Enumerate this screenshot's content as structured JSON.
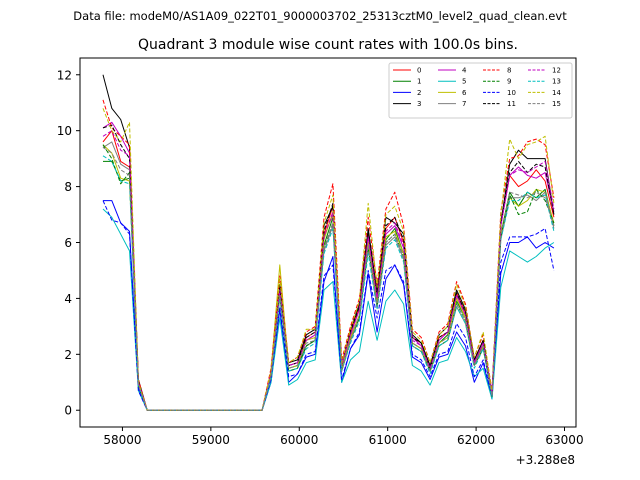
{
  "header": "Data file: modeM0/AS1A09_022T01_9000003702_25313cztM0_level2_quad_clean.evt",
  "chart_data": {
    "type": "line",
    "title": "Quadrant 3 module wise count rates with 100.0s bins.",
    "xlabel": "",
    "ylabel": "",
    "x_offset_label": "+3.288e8",
    "xlim": [
      57520,
      63130
    ],
    "ylim": [
      -0.6,
      12.6
    ],
    "xticks": [
      58000,
      59000,
      60000,
      61000,
      62000,
      63000
    ],
    "xtick_labels": [
      "58000",
      "59000",
      "60000",
      "61000",
      "62000",
      "63000"
    ],
    "yticks": [
      0,
      2,
      4,
      6,
      8,
      10,
      12
    ],
    "ytick_labels": [
      "0",
      "2",
      "4",
      "6",
      "8",
      "10",
      "12"
    ],
    "grid": false,
    "legend_placement": "top-right",
    "legend_columns": 4,
    "x": [
      57780,
      57880,
      57980,
      58080,
      58180,
      58280,
      58380,
      58480,
      58580,
      58680,
      58780,
      58880,
      58980,
      59080,
      59180,
      59280,
      59380,
      59480,
      59580,
      59680,
      59780,
      59880,
      59980,
      60080,
      60180,
      60280,
      60380,
      60480,
      60580,
      60680,
      60780,
      60880,
      60980,
      61080,
      61180,
      61280,
      61380,
      61480,
      61580,
      61680,
      61780,
      61880,
      61980,
      62080,
      62180,
      62280,
      62380,
      62480,
      62580,
      62680,
      62780,
      62880
    ],
    "series": [
      {
        "name": "0",
        "color": "#ff0000",
        "dash": false,
        "values": [
          9.6,
          10.0,
          8.9,
          8.7,
          1.0,
          0,
          0,
          0,
          0,
          0,
          0,
          0,
          0,
          0,
          0,
          0,
          0,
          0,
          0,
          1.3,
          4.4,
          1.6,
          1.7,
          2.6,
          2.8,
          6.3,
          7.3,
          1.6,
          2.8,
          3.7,
          6.3,
          4.2,
          6.5,
          6.9,
          6.0,
          2.6,
          2.4,
          1.5,
          2.6,
          2.8,
          4.2,
          3.5,
          1.8,
          2.5,
          0.6,
          6.6,
          8.4,
          8.0,
          8.2,
          8.6,
          8.2,
          6.9
        ]
      },
      {
        "name": "1",
        "color": "#008000",
        "dash": false,
        "values": [
          8.9,
          8.9,
          8.2,
          8.3,
          0.9,
          0,
          0,
          0,
          0,
          0,
          0,
          0,
          0,
          0,
          0,
          0,
          0,
          0,
          0,
          1.2,
          4.2,
          1.5,
          1.6,
          2.3,
          2.5,
          5.9,
          6.9,
          1.5,
          2.6,
          3.4,
          6.0,
          3.9,
          6.1,
          6.5,
          5.6,
          2.4,
          2.2,
          1.4,
          2.4,
          2.7,
          3.9,
          3.3,
          1.7,
          2.3,
          0.5,
          6.3,
          7.8,
          7.3,
          7.8,
          7.6,
          7.9,
          6.6
        ]
      },
      {
        "name": "2",
        "color": "#0000ff",
        "dash": false,
        "values": [
          7.5,
          7.5,
          6.7,
          6.4,
          0.8,
          0,
          0,
          0,
          0,
          0,
          0,
          0,
          0,
          0,
          0,
          0,
          0,
          0,
          0,
          1.0,
          3.6,
          1.0,
          1.3,
          1.9,
          2.0,
          4.6,
          5.5,
          1.0,
          2.2,
          2.7,
          4.9,
          2.8,
          4.7,
          5.2,
          4.5,
          1.9,
          1.7,
          1.1,
          1.9,
          2.0,
          2.8,
          2.3,
          1.0,
          1.7,
          0.4,
          4.9,
          6.0,
          6.0,
          6.2,
          5.8,
          6.0,
          5.8
        ]
      },
      {
        "name": "3",
        "color": "#000000",
        "dash": false,
        "values": [
          12.0,
          10.8,
          10.4,
          9.4,
          1.1,
          0,
          0,
          0,
          0,
          0,
          0,
          0,
          0,
          0,
          0,
          0,
          0,
          0,
          0,
          1.3,
          4.5,
          1.7,
          1.8,
          2.7,
          2.9,
          6.6,
          7.3,
          1.6,
          2.9,
          3.8,
          6.5,
          4.2,
          6.9,
          6.7,
          6.3,
          2.7,
          2.4,
          1.6,
          2.7,
          3.0,
          4.3,
          3.6,
          1.8,
          2.5,
          0.6,
          6.7,
          8.8,
          9.3,
          9.0,
          9.0,
          9.0,
          7.0
        ]
      },
      {
        "name": "4",
        "color": "#c000c0",
        "dash": false,
        "values": [
          10.1,
          10.3,
          9.8,
          9.2,
          1.0,
          0,
          0,
          0,
          0,
          0,
          0,
          0,
          0,
          0,
          0,
          0,
          0,
          0,
          0,
          1.3,
          4.3,
          1.6,
          1.7,
          2.5,
          2.7,
          6.2,
          7.0,
          1.6,
          2.7,
          3.6,
          6.2,
          4.0,
          6.3,
          6.6,
          5.8,
          2.6,
          2.3,
          1.5,
          2.5,
          2.8,
          4.1,
          3.4,
          1.7,
          2.4,
          0.6,
          6.6,
          8.4,
          8.7,
          8.4,
          8.3,
          8.5,
          7.1
        ]
      },
      {
        "name": "5",
        "color": "#00bfbf",
        "dash": false,
        "values": [
          7.2,
          6.9,
          6.3,
          5.7,
          0.7,
          0,
          0,
          0,
          0,
          0,
          0,
          0,
          0,
          0,
          0,
          0,
          0,
          0,
          0,
          1.0,
          3.3,
          0.9,
          1.1,
          1.7,
          1.8,
          4.3,
          4.6,
          1.0,
          1.8,
          2.1,
          3.9,
          2.5,
          3.9,
          4.3,
          3.8,
          1.6,
          1.4,
          0.9,
          1.7,
          1.8,
          2.6,
          2.1,
          1.2,
          1.5,
          0.4,
          4.4,
          5.7,
          5.5,
          5.3,
          5.5,
          5.8,
          6.0
        ]
      },
      {
        "name": "6",
        "color": "#bfbf00",
        "dash": false,
        "values": [
          9.5,
          9.2,
          8.3,
          8.2,
          0.9,
          0,
          0,
          0,
          0,
          0,
          0,
          0,
          0,
          0,
          0,
          0,
          0,
          0,
          0,
          1.4,
          5.2,
          1.5,
          1.6,
          2.5,
          2.6,
          6.1,
          7.1,
          1.5,
          2.6,
          3.4,
          6.0,
          3.8,
          6.2,
          6.4,
          5.6,
          2.4,
          2.2,
          1.4,
          2.4,
          2.6,
          4.0,
          3.3,
          1.6,
          2.3,
          0.5,
          6.3,
          7.6,
          7.3,
          7.5,
          7.9,
          7.8,
          6.7
        ]
      },
      {
        "name": "7",
        "color": "#7f7f7f",
        "dash": false,
        "values": [
          9.4,
          9.6,
          8.8,
          8.6,
          0.9,
          0,
          0,
          0,
          0,
          0,
          0,
          0,
          0,
          0,
          0,
          0,
          0,
          0,
          0,
          1.2,
          4.1,
          1.4,
          1.5,
          2.3,
          2.5,
          5.7,
          6.6,
          1.4,
          2.5,
          3.3,
          5.8,
          3.7,
          5.9,
          6.2,
          5.4,
          2.3,
          2.1,
          1.4,
          2.3,
          2.5,
          3.7,
          3.1,
          1.6,
          2.2,
          0.5,
          6.1,
          7.6,
          7.6,
          7.7,
          7.5,
          7.8,
          6.5
        ]
      },
      {
        "name": "8",
        "color": "#ff0000",
        "dash": true,
        "values": [
          11.1,
          10.1,
          9.8,
          9.5,
          1.1,
          0,
          0,
          0,
          0,
          0,
          0,
          0,
          0,
          0,
          0,
          0,
          0,
          0,
          0,
          1.5,
          4.8,
          1.7,
          1.9,
          2.8,
          3.0,
          6.9,
          8.1,
          1.8,
          3.0,
          4.0,
          6.9,
          4.5,
          7.2,
          7.8,
          6.6,
          2.9,
          2.6,
          1.7,
          2.8,
          3.1,
          4.6,
          3.8,
          1.9,
          2.7,
          0.7,
          7.1,
          9.0,
          9.1,
          9.6,
          9.7,
          9.5,
          7.6
        ]
      },
      {
        "name": "9",
        "color": "#008000",
        "dash": true,
        "values": [
          9.5,
          9.0,
          8.1,
          8.5,
          0.9,
          0,
          0,
          0,
          0,
          0,
          0,
          0,
          0,
          0,
          0,
          0,
          0,
          0,
          0,
          1.2,
          4.1,
          1.4,
          1.5,
          2.3,
          2.5,
          5.8,
          6.7,
          1.4,
          2.5,
          3.3,
          5.8,
          3.7,
          6.0,
          6.3,
          5.5,
          2.3,
          2.1,
          1.4,
          2.3,
          2.5,
          3.8,
          3.2,
          1.6,
          2.2,
          0.5,
          6.2,
          7.7,
          7.0,
          7.1,
          7.9,
          7.5,
          6.7
        ]
      },
      {
        "name": "10",
        "color": "#0000ff",
        "dash": true,
        "values": [
          7.5,
          6.8,
          6.7,
          6.3,
          0.7,
          0,
          0,
          0,
          0,
          0,
          0,
          0,
          0,
          0,
          0,
          0,
          0,
          0,
          0,
          1.1,
          3.7,
          1.2,
          1.3,
          2.0,
          2.1,
          4.8,
          5.2,
          1.1,
          2.2,
          2.8,
          5.0,
          3.3,
          5.0,
          5.2,
          4.6,
          2.0,
          1.8,
          1.2,
          2.0,
          2.1,
          3.1,
          2.6,
          1.2,
          1.8,
          0.5,
          5.3,
          6.2,
          6.2,
          6.2,
          6.3,
          6.5,
          5.0
        ]
      },
      {
        "name": "11",
        "color": "#000000",
        "dash": true,
        "values": [
          10.1,
          10.2,
          9.5,
          9.0,
          1.0,
          0,
          0,
          0,
          0,
          0,
          0,
          0,
          0,
          0,
          0,
          0,
          0,
          0,
          0,
          1.3,
          4.4,
          1.6,
          1.7,
          2.6,
          2.8,
          6.4,
          7.4,
          1.6,
          2.8,
          3.7,
          6.4,
          4.1,
          6.6,
          6.9,
          6.1,
          2.6,
          2.4,
          1.5,
          2.6,
          2.8,
          4.2,
          3.5,
          1.8,
          2.5,
          0.6,
          6.7,
          8.5,
          8.9,
          8.5,
          8.8,
          8.7,
          7.0
        ]
      },
      {
        "name": "12",
        "color": "#c000c0",
        "dash": true,
        "values": [
          9.8,
          10.0,
          9.3,
          9.1,
          1.0,
          0,
          0,
          0,
          0,
          0,
          0,
          0,
          0,
          0,
          0,
          0,
          0,
          0,
          0,
          1.3,
          4.3,
          1.6,
          1.7,
          2.5,
          2.7,
          6.2,
          7.1,
          1.6,
          2.7,
          3.6,
          6.2,
          4.0,
          6.4,
          6.7,
          5.9,
          2.5,
          2.3,
          1.5,
          2.5,
          2.8,
          4.1,
          3.4,
          1.7,
          2.4,
          0.6,
          6.6,
          8.4,
          8.6,
          8.5,
          8.7,
          8.9,
          7.2
        ]
      },
      {
        "name": "13",
        "color": "#00bfbf",
        "dash": true,
        "values": [
          9.1,
          8.9,
          8.2,
          8.1,
          0.9,
          0,
          0,
          0,
          0,
          0,
          0,
          0,
          0,
          0,
          0,
          0,
          0,
          0,
          0,
          1.2,
          4.0,
          1.4,
          1.5,
          2.2,
          2.4,
          5.6,
          6.5,
          1.4,
          2.4,
          3.2,
          5.6,
          3.6,
          5.8,
          6.1,
          5.3,
          2.3,
          2.1,
          1.3,
          2.3,
          2.5,
          3.7,
          3.1,
          1.5,
          2.2,
          0.5,
          6.1,
          7.5,
          7.5,
          7.8,
          7.6,
          7.7,
          6.4
        ]
      },
      {
        "name": "14",
        "color": "#bfbf00",
        "dash": true,
        "values": [
          10.8,
          10.0,
          9.6,
          10.3,
          1.0,
          0,
          0,
          0,
          0,
          0,
          0,
          0,
          0,
          0,
          0,
          0,
          0,
          0,
          0,
          1.4,
          4.7,
          1.7,
          1.9,
          2.9,
          2.9,
          6.7,
          7.7,
          1.7,
          2.9,
          3.9,
          7.4,
          4.4,
          7.0,
          7.3,
          6.4,
          2.8,
          2.5,
          1.7,
          2.7,
          3.0,
          4.5,
          3.7,
          1.9,
          2.8,
          0.6,
          7.0,
          9.7,
          9.0,
          9.5,
          9.6,
          9.8,
          7.4
        ]
      },
      {
        "name": "15",
        "color": "#7f7f7f",
        "dash": true,
        "values": [
          9.4,
          9.2,
          8.6,
          8.4,
          0.9,
          0,
          0,
          0,
          0,
          0,
          0,
          0,
          0,
          0,
          0,
          0,
          0,
          0,
          0,
          1.2,
          4.1,
          1.5,
          1.6,
          2.4,
          2.5,
          5.8,
          6.7,
          1.4,
          2.5,
          3.4,
          5.9,
          3.7,
          6.0,
          6.3,
          5.5,
          2.4,
          2.2,
          1.4,
          2.4,
          2.6,
          3.8,
          3.2,
          1.6,
          2.3,
          0.5,
          6.2,
          7.8,
          7.7,
          7.6,
          7.8,
          7.6,
          6.6
        ]
      }
    ]
  }
}
